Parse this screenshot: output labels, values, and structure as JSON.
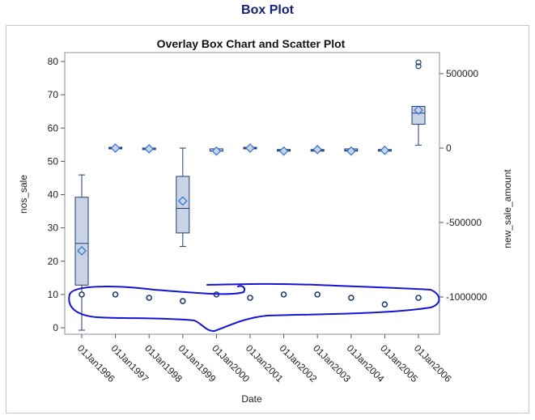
{
  "page": {
    "title": "Box Plot"
  },
  "chart_data": {
    "type": "box",
    "title": "Overlay Box Chart and Scatter Plot",
    "xlabel": "Date",
    "ylabel": "nos_sale",
    "y2label": "new_sale_amount",
    "categories": [
      "01Jan1996",
      "01Jan1997",
      "01Jan1998",
      "01Jan1999",
      "01Jan2000",
      "01Jan2001",
      "01Jan2002",
      "01Jan2003",
      "01Jan2004",
      "01Jan2005",
      "01Jan2006"
    ],
    "ylim": [
      0,
      80
    ],
    "yticks": [
      0,
      10,
      20,
      30,
      40,
      50,
      60,
      70,
      80
    ],
    "y2lim": [
      -1000000,
      500000
    ],
    "y2ticks": [
      -1000000,
      -500000,
      0,
      500000
    ],
    "y2ticklabels": [
      "-1000000",
      "-500000",
      "0",
      "500000"
    ],
    "box_series": {
      "axis": "y2",
      "boxes": [
        {
          "category": "01Jan1996",
          "min": -1223000,
          "q1": -920000,
          "median": -640000,
          "q3": -330000,
          "max": -180000,
          "mean": -690000,
          "outliers": []
        },
        {
          "category": "01Jan1997",
          "min": 0,
          "q1": 0,
          "median": 0,
          "q3": 0,
          "max": 0,
          "mean": 0,
          "outliers": []
        },
        {
          "category": "01Jan1998",
          "min": -5000,
          "q1": -5000,
          "median": -5000,
          "q3": -5000,
          "max": -5000,
          "mean": -5000,
          "outliers": []
        },
        {
          "category": "01Jan1999",
          "min": -660000,
          "q1": -570000,
          "median": -405000,
          "q3": -190000,
          "max": 0,
          "mean": -355000,
          "outliers": []
        },
        {
          "category": "01Jan2000",
          "min": -20000,
          "q1": -20000,
          "median": -20000,
          "q3": -5000,
          "max": -5000,
          "mean": -20000,
          "outliers": []
        },
        {
          "category": "01Jan2001",
          "min": 0,
          "q1": 0,
          "median": 0,
          "q3": 0,
          "max": 0,
          "mean": 0,
          "outliers": []
        },
        {
          "category": "01Jan2002",
          "min": -15000,
          "q1": -15000,
          "median": -15000,
          "q3": -15000,
          "max": -15000,
          "mean": -20000,
          "outliers": []
        },
        {
          "category": "01Jan2003",
          "min": -15000,
          "q1": -15000,
          "median": -15000,
          "q3": -15000,
          "max": -15000,
          "mean": -10000,
          "outliers": []
        },
        {
          "category": "01Jan2004",
          "min": -20000,
          "q1": -20000,
          "median": -15000,
          "q3": -5000,
          "max": -5000,
          "mean": -20000,
          "outliers": []
        },
        {
          "category": "01Jan2005",
          "min": -20000,
          "q1": -20000,
          "median": -15000,
          "q3": -15000,
          "max": -10000,
          "mean": -15000,
          "outliers": []
        },
        {
          "category": "01Jan2006",
          "min": 20000,
          "q1": 160000,
          "median": 235000,
          "q3": 280000,
          "max": 280000,
          "mean": 255000,
          "outliers": [
            550000,
            575000
          ]
        }
      ]
    },
    "scatter_series": {
      "axis": "y",
      "values": [
        10,
        10,
        9,
        8,
        10,
        9,
        10,
        10,
        9,
        7,
        9
      ]
    },
    "annotation_color": "#1414d4",
    "box_fill": "#c8d3e6",
    "box_stroke": "#1f3f73",
    "mean_marker_color": "#2f6fd0",
    "scatter_color": "#1f3f73",
    "title_color": "#112277"
  }
}
